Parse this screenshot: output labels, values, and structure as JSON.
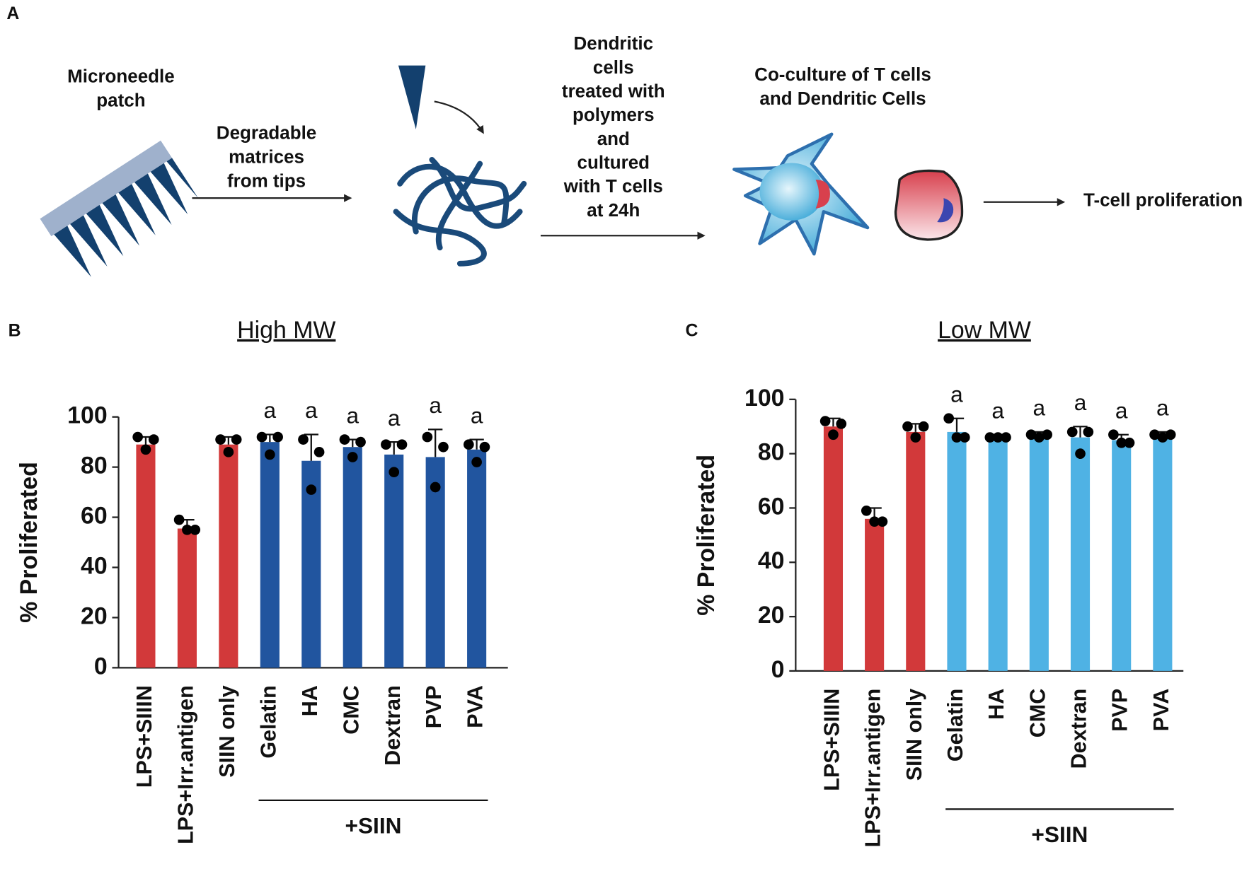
{
  "panels": [
    "A",
    "B",
    "C"
  ],
  "diagram": {
    "patch": [
      "Microneedle",
      "patch"
    ],
    "step1": [
      "Degradable",
      "matrices",
      "from tips"
    ],
    "step2": [
      "Dendritic",
      "cells",
      "treated with",
      "polymers",
      "and",
      "cultured",
      "with T cells",
      "at 24h"
    ],
    "step3": [
      "Co-culture of T cells",
      "and Dendritic Cells"
    ],
    "result": "T-cell proliferation"
  },
  "chart_data": [
    {
      "type": "bar",
      "title": "High MW",
      "ylabel": "% Proliferated",
      "categories": [
        "LPS+SIIIN",
        "LPS+Irr.antigen",
        "SIIN only",
        "Gelatin",
        "HA",
        "CMC",
        "Dextran",
        "PVP",
        "PVA"
      ],
      "values": [
        89,
        55.5,
        89,
        90,
        82.5,
        88,
        85,
        84,
        87
      ],
      "errors": [
        3,
        3.5,
        3,
        3,
        10.5,
        3,
        5,
        11,
        4
      ],
      "points": [
        [
          92,
          91,
          87
        ],
        [
          59,
          55,
          55
        ],
        [
          91,
          91,
          86
        ],
        [
          92,
          92,
          85
        ],
        [
          91,
          86,
          71
        ],
        [
          91,
          90,
          84
        ],
        [
          89,
          89,
          78
        ],
        [
          92,
          88,
          72
        ],
        [
          89,
          88,
          82
        ]
      ],
      "colors": [
        "#d2393a",
        "#d2393a",
        "#d2393a",
        "#21559f",
        "#21559f",
        "#21559f",
        "#21559f",
        "#21559f",
        "#21559f"
      ],
      "annotations": [
        null,
        null,
        null,
        "a",
        "a",
        "a",
        "a",
        "a",
        "a"
      ],
      "group": {
        "label": "+SIIN",
        "start": "Gelatin",
        "end": "PVA"
      },
      "ylim": [
        0,
        100
      ],
      "yticks": [
        0,
        20,
        40,
        60,
        80,
        100
      ]
    },
    {
      "type": "bar",
      "title": "Low MW",
      "ylabel": "% Proliferated",
      "categories": [
        "LPS+SIIIN",
        "LPS+Irr.antigen",
        "SIIN only",
        "Gelatin",
        "HA",
        "CMC",
        "Dextran",
        "PVP",
        "PVA"
      ],
      "values": [
        90,
        56,
        88,
        88,
        86,
        86,
        86,
        85,
        86
      ],
      "errors": [
        3,
        4,
        3,
        5,
        1,
        2,
        4,
        2,
        2
      ],
      "points": [
        [
          92,
          91,
          87
        ],
        [
          59,
          55,
          55
        ],
        [
          90,
          90,
          86
        ],
        [
          93,
          86,
          86
        ],
        [
          86,
          86,
          86
        ],
        [
          87,
          87,
          86
        ],
        [
          88,
          88,
          80
        ],
        [
          87,
          84,
          84
        ],
        [
          87,
          87,
          86
        ]
      ],
      "colors": [
        "#d2393a",
        "#d2393a",
        "#d2393a",
        "#4fb2e4",
        "#4fb2e4",
        "#4fb2e4",
        "#4fb2e4",
        "#4fb2e4",
        "#4fb2e4"
      ],
      "annotations": [
        null,
        null,
        null,
        "a",
        "a",
        "a",
        "a",
        "a",
        "a"
      ],
      "group": {
        "label": "+SIIN",
        "start": "Gelatin",
        "end": "PVA"
      },
      "ylim": [
        0,
        100
      ],
      "yticks": [
        0,
        20,
        40,
        60,
        80,
        100
      ]
    }
  ]
}
